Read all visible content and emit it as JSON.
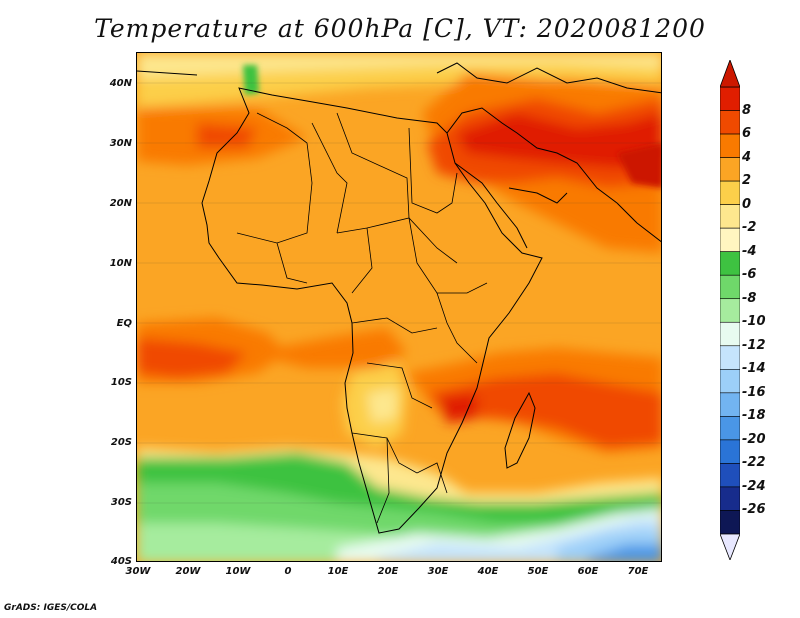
{
  "title": "Temperature at 600hPa [C], VT: 2020081200",
  "credit": "GrADS: IGES/COLA",
  "map": {
    "projection": "lat-lon",
    "lon_range": [
      -30,
      75
    ],
    "lat_range": [
      -40,
      45
    ],
    "variable": "Temperature",
    "level": "600hPa",
    "units": "C",
    "valid_time": "2020081200"
  },
  "axes": {
    "lat_labels": [
      "40N",
      "30N",
      "20N",
      "10N",
      "EQ",
      "10S",
      "20S",
      "30S",
      "40S"
    ],
    "lon_labels": [
      "30W",
      "20W",
      "10W",
      "0",
      "10E",
      "20E",
      "30E",
      "40E",
      "50E",
      "60E",
      "70E"
    ]
  },
  "colorbar": {
    "labels": [
      "8",
      "6",
      "4",
      "2",
      "0",
      "-2",
      "-4",
      "-6",
      "-8",
      "-10",
      "-12",
      "-14",
      "-16",
      "-18",
      "-20",
      "-22",
      "-24",
      "-26"
    ],
    "colors": [
      "#e01e00",
      "#f04a00",
      "#f97a00",
      "#fba524",
      "#fccf4a",
      "#fde78e",
      "#fff6c0",
      "#3ec241",
      "#6fd86a",
      "#a6ec9e",
      "#e8fbf0",
      "#c5e4fc",
      "#9ccff8",
      "#72b4f1",
      "#4a96e6",
      "#2a74d7",
      "#1f4fbb",
      "#172c8c",
      "#0e1755"
    ],
    "top_color": "#cc1800",
    "bottom_color": "#e8e8ff"
  }
}
